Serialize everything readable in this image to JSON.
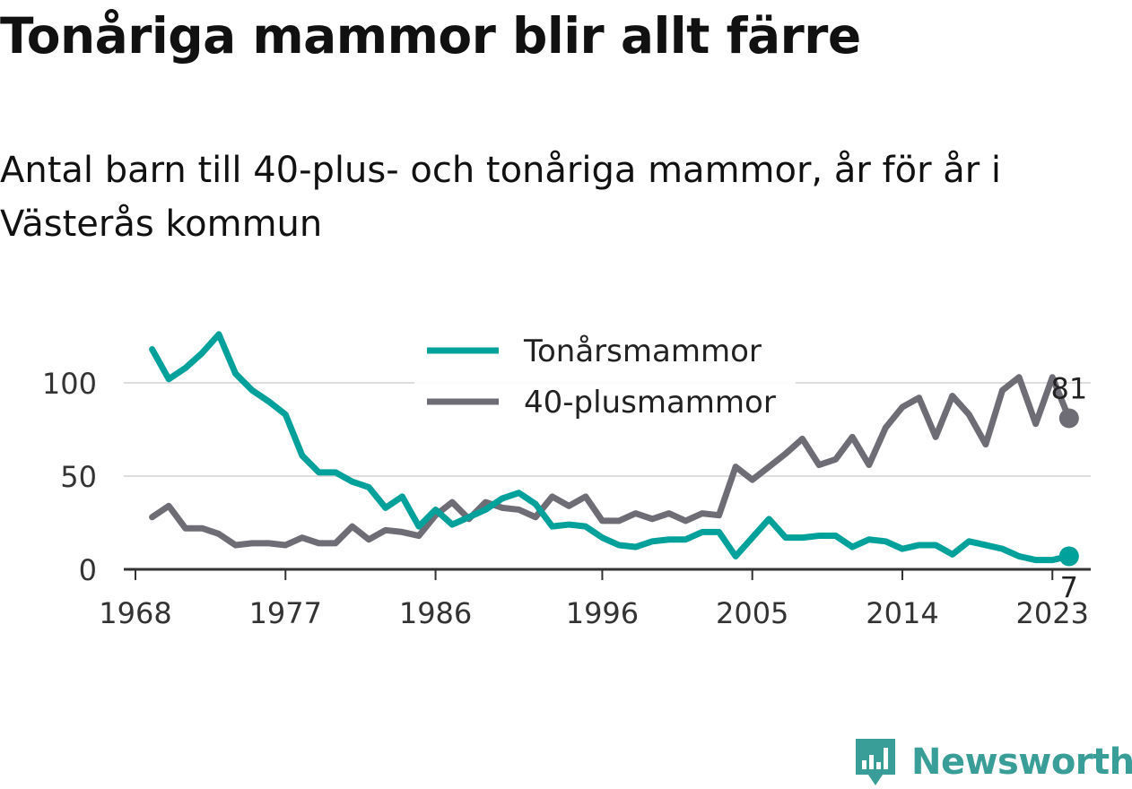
{
  "header": {
    "title": "Tonåriga mammor blir allt färre",
    "subtitle": "Antal barn till 40-plus- och tonåriga mammor, år för år i Västerås kommun"
  },
  "chart_data": {
    "type": "line",
    "title": "Tonåriga mammor blir allt färre",
    "subtitle": "Antal barn till 40-plus- och tonåriga mammor, år för år i Västerås kommun",
    "xlabel": "",
    "ylabel": "",
    "x": [
      1969,
      1970,
      1971,
      1972,
      1973,
      1974,
      1975,
      1976,
      1977,
      1978,
      1979,
      1980,
      1981,
      1982,
      1983,
      1984,
      1985,
      1986,
      1987,
      1988,
      1989,
      1990,
      1991,
      1992,
      1993,
      1994,
      1995,
      1996,
      1997,
      1998,
      1999,
      2000,
      2001,
      2002,
      2003,
      2004,
      2005,
      2006,
      2007,
      2008,
      2009,
      2010,
      2011,
      2012,
      2013,
      2014,
      2015,
      2016,
      2017,
      2018,
      2019,
      2020,
      2021,
      2022,
      2023,
      2024
    ],
    "x_ticks": [
      1968,
      1977,
      1986,
      1996,
      2005,
      2014,
      2023
    ],
    "x_tick_labels": [
      "1968",
      "1977",
      "1986",
      "1996",
      "2005",
      "2014",
      "2023"
    ],
    "y_ticks": [
      0,
      50,
      100
    ],
    "y_tick_labels": [
      "0",
      "50",
      "100"
    ],
    "xlim": [
      1968,
      2025
    ],
    "ylim": [
      0,
      130
    ],
    "grid": true,
    "legend_position": "top-center",
    "series": [
      {
        "name": "Tonårsmammor",
        "color": "#00a19a",
        "values": [
          118,
          102,
          108,
          116,
          126,
          105,
          96,
          90,
          83,
          61,
          52,
          52,
          47,
          44,
          33,
          39,
          23,
          32,
          24,
          28,
          32,
          38,
          41,
          35,
          23,
          24,
          23,
          17,
          13,
          12,
          15,
          16,
          16,
          20,
          20,
          7,
          17,
          27,
          17,
          17,
          18,
          18,
          12,
          16,
          15,
          11,
          13,
          13,
          8,
          15,
          13,
          11,
          7,
          5,
          5,
          7
        ],
        "end_label": "7"
      },
      {
        "name": "40-plusmammor",
        "color": "#6e6d75",
        "values": [
          28,
          34,
          22,
          22,
          19,
          13,
          14,
          14,
          13,
          17,
          14,
          14,
          23,
          16,
          21,
          20,
          18,
          29,
          36,
          27,
          36,
          33,
          32,
          28,
          39,
          34,
          39,
          26,
          26,
          30,
          27,
          30,
          26,
          30,
          29,
          55,
          48,
          55,
          62,
          70,
          56,
          59,
          71,
          56,
          76,
          87,
          92,
          71,
          93,
          83,
          67,
          96,
          103,
          78,
          103,
          81
        ],
        "end_label": "81"
      }
    ]
  },
  "branding": {
    "logo_text": "Newsworthy",
    "logo_icon": "newsworthy-chart-icon"
  },
  "colors": {
    "teal": "#00a19a",
    "gray": "#6e6d75",
    "gridline": "#dddddd",
    "axis": "#333333",
    "logo": "#3a9e98"
  }
}
